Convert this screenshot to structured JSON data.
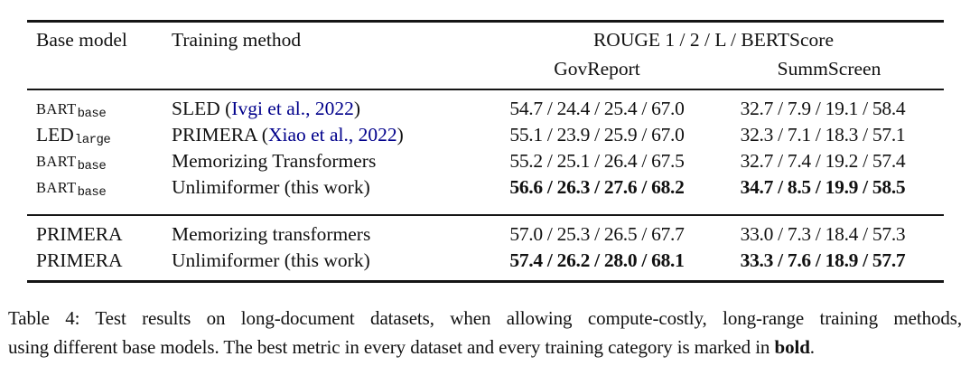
{
  "colors": {
    "citation_link": "#00008B",
    "text": "#111111",
    "rule": "#151515"
  },
  "table": {
    "header": {
      "base_model": "Base model",
      "training_method": "Training method",
      "metrics_group": "ROUGE 1 / 2 / L / BERTScore",
      "dataset_left": "GovReport",
      "dataset_right": "SummScreen"
    },
    "rows": [
      {
        "model": "BART",
        "model_sub": "base",
        "method_pre": "SLED (",
        "method_cite": "Ivgi et al., 2022",
        "method_post": ")",
        "govreport": "54.7 / 24.4 / 25.4 / 67.0",
        "summscreen": "32.7 / 7.9 / 19.1 / 58.4",
        "bold": false
      },
      {
        "model": "LED",
        "model_sub": "large",
        "method_pre": "PRIMERA (",
        "method_cite": "Xiao et al., 2022",
        "method_post": ")",
        "govreport": "55.1 / 23.9 / 25.9 / 67.0",
        "summscreen": "32.3 / 7.1 / 18.3 / 57.1",
        "bold": false
      },
      {
        "model": "BART",
        "model_sub": "base",
        "method_pre": "Memorizing Transformers",
        "method_cite": "",
        "method_post": "",
        "govreport": "55.2 / 25.1 / 26.4 / 67.5",
        "summscreen": "32.7 / 7.4 / 19.2 / 57.4",
        "bold": false
      },
      {
        "model": "BART",
        "model_sub": "base",
        "method_pre": "Unlimiformer (this work)",
        "method_cite": "",
        "method_post": "",
        "govreport": "56.6 / 26.3 / 27.6 / 68.2",
        "summscreen": "34.7 / 8.5 / 19.9 / 58.5",
        "bold": true
      },
      {
        "model": "PRIMERA",
        "model_sub": "",
        "method_pre": "Memorizing transformers",
        "method_cite": "",
        "method_post": "",
        "govreport": "57.0 / 25.3 / 26.5 / 67.7",
        "summscreen": "33.0 / 7.3 / 18.4 / 57.3",
        "bold": false
      },
      {
        "model": "PRIMERA",
        "model_sub": "",
        "method_pre": "Unlimiformer (this work)",
        "method_cite": "",
        "method_post": "",
        "govreport": "57.4 / 26.2 / 28.0 / 68.1",
        "summscreen": "33.3 / 7.6 / 18.9 / 57.7",
        "bold": true
      }
    ]
  },
  "caption": {
    "line1": "Table 4:  Test results on long-document datasets, when allowing compute-costly, long-range training methods,",
    "line2_before_bold": "using different base models. The best metric in every dataset and every training category is marked in ",
    "bold_word": "bold",
    "line2_after": "."
  }
}
